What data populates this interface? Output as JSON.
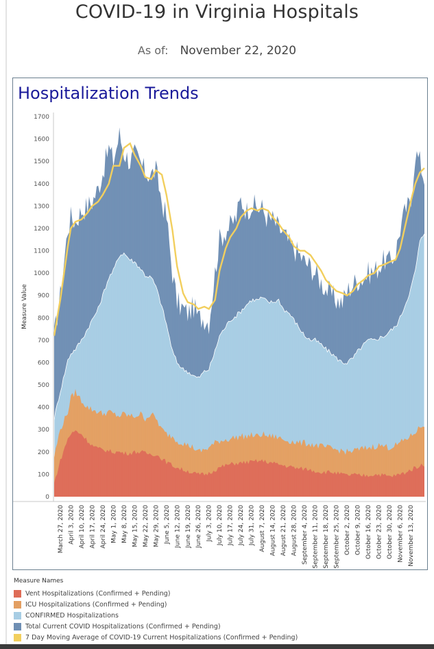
{
  "header": {
    "title": "COVID-19 in Virginia Hospitals",
    "asof_label": "As of:",
    "asof_date": "November 22, 2020"
  },
  "panel": {
    "title": "Hospitalization Trends"
  },
  "legend": {
    "title": "Measure Names",
    "items": [
      {
        "label": "Vent Hospitalizations (Confirmed + Pending)",
        "color": "#de6c57"
      },
      {
        "label": "ICU Hospitalizations (Confirmed + Pending)",
        "color": "#e39f62"
      },
      {
        "label": "CONFIRMED Hospitalizations",
        "color": "#a7cde4"
      },
      {
        "label": "Total Current COVID Hospitalizations (Confirmed + Pending)",
        "color": "#6f8fb4"
      },
      {
        "label": "7 Day Moving Average of COVID-19 Current Hospitalizations (Confirmed + Pending)",
        "color": "#f2cf5e"
      }
    ]
  },
  "chart_data": {
    "type": "area",
    "title": "Hospitalization Trends",
    "xlabel": "",
    "ylabel": "Measure Value",
    "ylim": [
      0,
      1700
    ],
    "yticks": [
      0,
      100,
      200,
      300,
      400,
      500,
      600,
      700,
      800,
      900,
      1000,
      1100,
      1200,
      1300,
      1400,
      1500,
      1600,
      1700
    ],
    "xlim": [
      "2020-03-23",
      "2020-11-22"
    ],
    "xtick_labels": [
      "March 27, 2020",
      "April 3, 2020",
      "April 10, 2020",
      "April 17, 2020",
      "April 24, 2020",
      "May 1, 2020",
      "May 8, 2020",
      "May 15, 2020",
      "May 22, 2020",
      "May 29, 2020",
      "June 5, 2020",
      "June 12, 2020",
      "June 19, 2020",
      "June 26, 2020",
      "July 3, 2020",
      "July 10, 2020",
      "July 17, 2020",
      "July 24, 2020",
      "July 31, 2020",
      "August 7, 2020",
      "August 14, 2020",
      "August 21, 2020",
      "August 28, 2020",
      "September 4, 2020",
      "September 11, 2020",
      "September 18, 2020",
      "September 25, 2020",
      "October 2, 2020",
      "October 9, 2020",
      "October 16, 2020",
      "October 23, 2020",
      "October 30, 2020",
      "November 6, 2020",
      "November 13, 2020"
    ],
    "grid": true,
    "legend_position": "bottom",
    "series": [
      {
        "name": "Total Current COVID Hospitalizations (Confirmed + Pending)",
        "color": "#6f8fb4",
        "x": [
          "2020-03-23",
          "2020-03-27",
          "2020-04-01",
          "2020-04-03",
          "2020-04-06",
          "2020-04-10",
          "2020-04-14",
          "2020-04-17",
          "2020-04-21",
          "2020-04-24",
          "2020-04-28",
          "2020-05-01",
          "2020-05-05",
          "2020-05-08",
          "2020-05-12",
          "2020-05-15",
          "2020-05-19",
          "2020-05-22",
          "2020-05-26",
          "2020-05-29",
          "2020-06-02",
          "2020-06-05",
          "2020-06-09",
          "2020-06-12",
          "2020-06-16",
          "2020-06-19",
          "2020-06-23",
          "2020-06-26",
          "2020-06-30",
          "2020-07-03",
          "2020-07-07",
          "2020-07-10",
          "2020-07-14",
          "2020-07-17",
          "2020-07-21",
          "2020-07-24",
          "2020-07-28",
          "2020-07-31",
          "2020-08-04",
          "2020-08-07",
          "2020-08-11",
          "2020-08-14",
          "2020-08-18",
          "2020-08-21",
          "2020-08-25",
          "2020-08-28",
          "2020-09-01",
          "2020-09-04",
          "2020-09-08",
          "2020-09-11",
          "2020-09-15",
          "2020-09-18",
          "2020-09-22",
          "2020-09-25",
          "2020-09-29",
          "2020-10-02",
          "2020-10-06",
          "2020-10-09",
          "2020-10-13",
          "2020-10-16",
          "2020-10-20",
          "2020-10-23",
          "2020-10-27",
          "2020-10-30",
          "2020-11-03",
          "2020-11-06",
          "2020-11-10",
          "2020-11-13",
          "2020-11-16",
          "2020-11-19",
          "2020-11-22"
        ],
        "values": [
          720,
          900,
          1200,
          1250,
          1230,
          1280,
          1300,
          1320,
          1380,
          1450,
          1560,
          1500,
          1620,
          1540,
          1500,
          1530,
          1490,
          1450,
          1440,
          1460,
          1320,
          1250,
          1000,
          870,
          840,
          820,
          850,
          800,
          800,
          780,
          1000,
          1150,
          1190,
          1210,
          1250,
          1330,
          1280,
          1310,
          1290,
          1290,
          1240,
          1240,
          1200,
          1180,
          1130,
          1110,
          1080,
          1050,
          1030,
          1000,
          960,
          930,
          900,
          880,
          870,
          920,
          950,
          970,
          980,
          1000,
          1010,
          1030,
          1060,
          1050,
          1090,
          1200,
          1290,
          1310,
          1540,
          1500,
          1420
        ]
      },
      {
        "name": "CONFIRMED Hospitalizations",
        "color": "#a7cde4",
        "x": [
          "2020-03-23",
          "2020-03-27",
          "2020-04-01",
          "2020-04-03",
          "2020-04-06",
          "2020-04-10",
          "2020-04-14",
          "2020-04-17",
          "2020-04-21",
          "2020-04-24",
          "2020-04-28",
          "2020-05-01",
          "2020-05-05",
          "2020-05-08",
          "2020-05-12",
          "2020-05-15",
          "2020-05-19",
          "2020-05-22",
          "2020-05-26",
          "2020-05-29",
          "2020-06-02",
          "2020-06-05",
          "2020-06-09",
          "2020-06-12",
          "2020-06-16",
          "2020-06-19",
          "2020-06-23",
          "2020-06-26",
          "2020-06-30",
          "2020-07-03",
          "2020-07-07",
          "2020-07-10",
          "2020-07-14",
          "2020-07-17",
          "2020-07-21",
          "2020-07-24",
          "2020-07-28",
          "2020-07-31",
          "2020-08-04",
          "2020-08-07",
          "2020-08-11",
          "2020-08-14",
          "2020-08-18",
          "2020-08-21",
          "2020-08-25",
          "2020-08-28",
          "2020-09-01",
          "2020-09-04",
          "2020-09-08",
          "2020-09-11",
          "2020-09-15",
          "2020-09-18",
          "2020-09-22",
          "2020-09-25",
          "2020-09-29",
          "2020-10-02",
          "2020-10-06",
          "2020-10-09",
          "2020-10-13",
          "2020-10-16",
          "2020-10-20",
          "2020-10-23",
          "2020-10-27",
          "2020-10-30",
          "2020-11-03",
          "2020-11-06",
          "2020-11-10",
          "2020-11-13",
          "2020-11-16",
          "2020-11-19",
          "2020-11-22"
        ],
        "values": [
          350,
          470,
          610,
          640,
          660,
          700,
          750,
          790,
          840,
          900,
          980,
          1010,
          1080,
          1090,
          1060,
          1050,
          1020,
          990,
          980,
          940,
          850,
          770,
          650,
          600,
          570,
          560,
          540,
          530,
          560,
          570,
          650,
          720,
          760,
          790,
          810,
          830,
          860,
          880,
          880,
          890,
          870,
          870,
          880,
          840,
          820,
          790,
          750,
          720,
          700,
          700,
          680,
          660,
          640,
          620,
          600,
          600,
          620,
          650,
          680,
          700,
          700,
          710,
          720,
          740,
          760,
          800,
          870,
          930,
          1010,
          1140,
          1180
        ]
      },
      {
        "name": "ICU Hospitalizations (Confirmed + Pending)",
        "color": "#e39f62",
        "x": [
          "2020-03-23",
          "2020-03-27",
          "2020-04-01",
          "2020-04-03",
          "2020-04-06",
          "2020-04-10",
          "2020-04-14",
          "2020-04-17",
          "2020-04-21",
          "2020-04-24",
          "2020-04-28",
          "2020-05-01",
          "2020-05-05",
          "2020-05-08",
          "2020-05-12",
          "2020-05-15",
          "2020-05-19",
          "2020-05-22",
          "2020-05-26",
          "2020-05-29",
          "2020-06-02",
          "2020-06-05",
          "2020-06-09",
          "2020-06-12",
          "2020-06-16",
          "2020-06-19",
          "2020-06-23",
          "2020-06-26",
          "2020-06-30",
          "2020-07-03",
          "2020-07-07",
          "2020-07-10",
          "2020-07-14",
          "2020-07-17",
          "2020-07-21",
          "2020-07-24",
          "2020-07-28",
          "2020-07-31",
          "2020-08-04",
          "2020-08-07",
          "2020-08-11",
          "2020-08-14",
          "2020-08-18",
          "2020-08-21",
          "2020-08-25",
          "2020-08-28",
          "2020-09-01",
          "2020-09-04",
          "2020-09-08",
          "2020-09-11",
          "2020-09-15",
          "2020-09-18",
          "2020-09-22",
          "2020-09-25",
          "2020-09-29",
          "2020-10-02",
          "2020-10-06",
          "2020-10-09",
          "2020-10-13",
          "2020-10-16",
          "2020-10-20",
          "2020-10-23",
          "2020-10-27",
          "2020-10-30",
          "2020-11-03",
          "2020-11-06",
          "2020-11-10",
          "2020-11-13",
          "2020-11-16",
          "2020-11-19",
          "2020-11-22"
        ],
        "values": [
          180,
          300,
          380,
          440,
          470,
          430,
          400,
          390,
          380,
          370,
          380,
          370,
          360,
          370,
          360,
          360,
          370,
          350,
          370,
          350,
          300,
          280,
          270,
          250,
          240,
          230,
          220,
          200,
          210,
          220,
          240,
          250,
          255,
          260,
          265,
          270,
          270,
          275,
          270,
          280,
          270,
          270,
          265,
          255,
          250,
          245,
          240,
          240,
          235,
          230,
          225,
          220,
          215,
          210,
          205,
          200,
          205,
          210,
          215,
          220,
          225,
          230,
          225,
          220,
          230,
          240,
          260,
          270,
          290,
          310,
          320
        ]
      },
      {
        "name": "Vent Hospitalizations (Confirmed + Pending)",
        "color": "#de6c57",
        "x": [
          "2020-03-23",
          "2020-03-27",
          "2020-04-01",
          "2020-04-03",
          "2020-04-06",
          "2020-04-10",
          "2020-04-14",
          "2020-04-17",
          "2020-04-21",
          "2020-04-24",
          "2020-04-28",
          "2020-05-01",
          "2020-05-05",
          "2020-05-08",
          "2020-05-12",
          "2020-05-15",
          "2020-05-19",
          "2020-05-22",
          "2020-05-26",
          "2020-05-29",
          "2020-06-02",
          "2020-06-05",
          "2020-06-09",
          "2020-06-12",
          "2020-06-16",
          "2020-06-19",
          "2020-06-23",
          "2020-06-26",
          "2020-06-30",
          "2020-07-03",
          "2020-07-07",
          "2020-07-10",
          "2020-07-14",
          "2020-07-17",
          "2020-07-21",
          "2020-07-24",
          "2020-07-28",
          "2020-07-31",
          "2020-08-04",
          "2020-08-07",
          "2020-08-11",
          "2020-08-14",
          "2020-08-18",
          "2020-08-21",
          "2020-08-25",
          "2020-08-28",
          "2020-09-01",
          "2020-09-04",
          "2020-09-08",
          "2020-09-11",
          "2020-09-15",
          "2020-09-18",
          "2020-09-22",
          "2020-09-25",
          "2020-09-29",
          "2020-10-02",
          "2020-10-06",
          "2020-10-09",
          "2020-10-13",
          "2020-10-16",
          "2020-10-20",
          "2020-10-23",
          "2020-10-27",
          "2020-10-30",
          "2020-11-03",
          "2020-11-06",
          "2020-11-10",
          "2020-11-13",
          "2020-11-16",
          "2020-11-19",
          "2020-11-22"
        ],
        "values": [
          60,
          160,
          260,
          280,
          295,
          280,
          250,
          230,
          215,
          210,
          205,
          200,
          200,
          195,
          195,
          200,
          200,
          195,
          190,
          190,
          170,
          155,
          140,
          130,
          120,
          115,
          105,
          100,
          100,
          105,
          120,
          130,
          140,
          145,
          150,
          150,
          155,
          155,
          160,
          160,
          155,
          150,
          145,
          140,
          135,
          130,
          125,
          125,
          120,
          115,
          110,
          110,
          110,
          105,
          100,
          95,
          100,
          95,
          95,
          95,
          100,
          100,
          95,
          90,
          95,
          100,
          110,
          120,
          130,
          140,
          140
        ]
      },
      {
        "name": "7 Day Moving Average of COVID-19 Current Hospitalizations (Confirmed + Pending)",
        "color": "#f2cf5e",
        "x": [
          "2020-03-23",
          "2020-03-27",
          "2020-04-01",
          "2020-04-03",
          "2020-04-06",
          "2020-04-10",
          "2020-04-14",
          "2020-04-17",
          "2020-04-21",
          "2020-04-24",
          "2020-04-28",
          "2020-05-01",
          "2020-05-05",
          "2020-05-08",
          "2020-05-12",
          "2020-05-15",
          "2020-05-19",
          "2020-05-22",
          "2020-05-26",
          "2020-05-29",
          "2020-06-02",
          "2020-06-05",
          "2020-06-09",
          "2020-06-12",
          "2020-06-16",
          "2020-06-19",
          "2020-06-23",
          "2020-06-26",
          "2020-06-30",
          "2020-07-03",
          "2020-07-07",
          "2020-07-10",
          "2020-07-14",
          "2020-07-17",
          "2020-07-21",
          "2020-07-24",
          "2020-07-28",
          "2020-07-31",
          "2020-08-04",
          "2020-08-07",
          "2020-08-11",
          "2020-08-14",
          "2020-08-18",
          "2020-08-21",
          "2020-08-25",
          "2020-08-28",
          "2020-09-01",
          "2020-09-04",
          "2020-09-08",
          "2020-09-11",
          "2020-09-15",
          "2020-09-18",
          "2020-09-22",
          "2020-09-25",
          "2020-09-29",
          "2020-10-02",
          "2020-10-06",
          "2020-10-09",
          "2020-10-13",
          "2020-10-16",
          "2020-10-20",
          "2020-10-23",
          "2020-10-27",
          "2020-10-30",
          "2020-11-03",
          "2020-11-06",
          "2020-11-10",
          "2020-11-13",
          "2020-11-16",
          "2020-11-19",
          "2020-11-22"
        ],
        "values": [
          720,
          880,
          1120,
          1200,
          1230,
          1240,
          1270,
          1300,
          1320,
          1350,
          1400,
          1480,
          1480,
          1560,
          1580,
          1530,
          1480,
          1430,
          1420,
          1460,
          1440,
          1350,
          1190,
          1030,
          910,
          870,
          860,
          840,
          850,
          840,
          880,
          1010,
          1110,
          1160,
          1200,
          1250,
          1280,
          1290,
          1280,
          1290,
          1280,
          1250,
          1220,
          1190,
          1160,
          1120,
          1100,
          1100,
          1080,
          1050,
          1010,
          970,
          940,
          920,
          910,
          900,
          920,
          950,
          970,
          990,
          1000,
          1030,
          1040,
          1050,
          1060,
          1110,
          1230,
          1320,
          1400,
          1450,
          1470
        ]
      }
    ]
  }
}
